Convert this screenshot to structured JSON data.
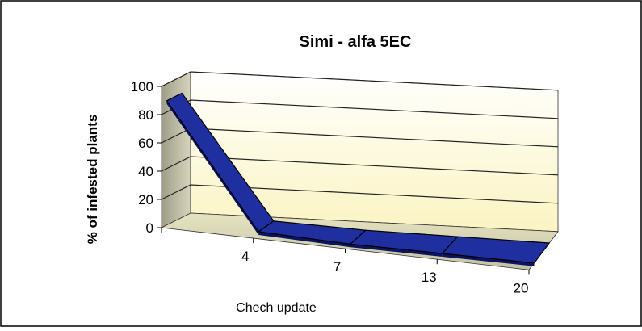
{
  "chart_data": {
    "type": "line",
    "title": "Simi - alfa 5EC",
    "xlabel": "Chech update",
    "ylabel": "% of infested plants",
    "categories": [
      "",
      "4",
      "7",
      "13",
      "20"
    ],
    "series": [
      {
        "values": [
          88,
          2,
          0,
          0,
          0
        ]
      }
    ],
    "ylim": [
      0,
      100
    ],
    "yticks": [
      "0",
      "20",
      "40",
      "60",
      "80",
      "100"
    ],
    "grid": true,
    "style": "3d",
    "colors": {
      "series_fill": "#1f2f9f",
      "series_dark": "#0b1460",
      "back_wall": "#fffde6",
      "side_wall": "#c8c6a8",
      "floor": "#d8d6b4"
    }
  }
}
